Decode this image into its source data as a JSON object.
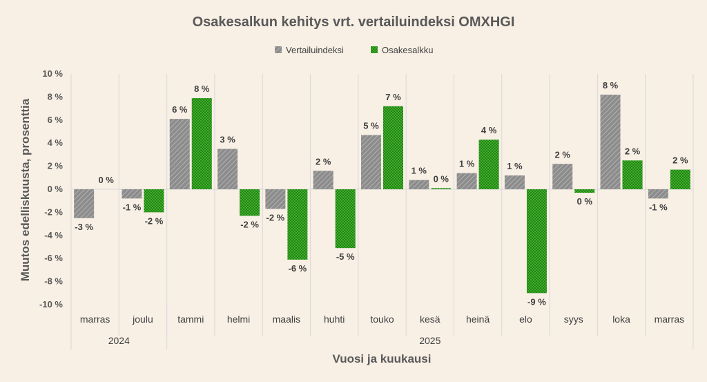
{
  "chart_data": {
    "type": "bar",
    "title": "Osakesalkun kehitys vrt. vertailuindeksi OMXHGI",
    "xlabel": "Vuosi ja kuukausi",
    "ylabel": "Muutos edelliskuusta, prosenttia",
    "ylim": [
      -10,
      10
    ],
    "yticks": [
      "10 %",
      "8 %",
      "6 %",
      "4 %",
      "2 %",
      "0 %",
      "-2 %",
      "-4 %",
      "-6 %",
      "-8 %",
      "-10 %"
    ],
    "ytick_values": [
      10,
      8,
      6,
      4,
      2,
      0,
      -2,
      -4,
      -6,
      -8,
      -10
    ],
    "categories": [
      "marras",
      "joulu",
      "tammi",
      "helmi",
      "maalis",
      "huhti",
      "touko",
      "kesä",
      "heinä",
      "elo",
      "syys",
      "loka",
      "marras"
    ],
    "year_groups": [
      {
        "label": "2024",
        "count": 2
      },
      {
        "label": "2025",
        "count": 11
      }
    ],
    "legend_position": "top",
    "grid": "vertical category separators",
    "series": [
      {
        "name": "Vertailuindeksi",
        "color": "#8c8c8c",
        "pattern": "diagonal-hatch",
        "values": [
          -2.5,
          -0.8,
          6.1,
          3.5,
          -1.7,
          1.6,
          4.7,
          0.8,
          1.4,
          1.2,
          2.2,
          8.2,
          -0.8
        ],
        "labels": [
          "-3 %",
          "-1 %",
          "6 %",
          "3 %",
          "-2 %",
          "2 %",
          "5 %",
          "1 %",
          "1 %",
          "1 %",
          "2 %",
          "8 %",
          "-1 %"
        ]
      },
      {
        "name": "Osakesalkku",
        "color": "#1a8a0a",
        "pattern": "dotted",
        "values": [
          0,
          -2.0,
          7.9,
          -2.3,
          -6.1,
          -5.1,
          7.2,
          0.1,
          4.3,
          -9.0,
          -0.3,
          2.5,
          1.7
        ],
        "labels": [
          "0 %",
          "-2 %",
          "8 %",
          "-2 %",
          "-6 %",
          "-5 %",
          "7 %",
          "0 %",
          "4 %",
          "-9 %",
          "0 %",
          "2 %",
          "2 %"
        ]
      }
    ]
  }
}
